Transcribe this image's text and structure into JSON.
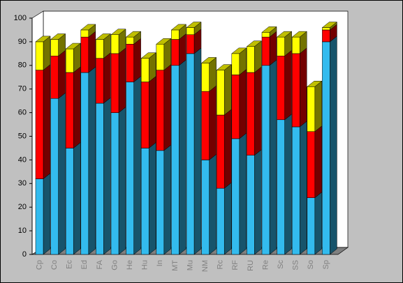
{
  "chart_data": {
    "type": "bar3d_stacked",
    "categories": [
      "Cp",
      "Co",
      "Ec",
      "Ed",
      "FA",
      "Go",
      "He",
      "Hu",
      "In",
      "MT",
      "Mu",
      "NM",
      "Rc",
      "RF",
      "RU",
      "Re",
      "Sc",
      "SS",
      "So",
      "Sp"
    ],
    "series": [
      {
        "color": "#33bbee",
        "values": [
          32,
          66,
          45,
          77,
          64,
          60,
          73,
          45,
          44,
          80,
          85,
          40,
          28,
          49,
          42,
          80,
          57,
          54,
          24,
          90
        ]
      },
      {
        "color": "#ff0000",
        "values": [
          46,
          18,
          32,
          15,
          19,
          25,
          16,
          28,
          34,
          11,
          8,
          29,
          31,
          27,
          35,
          12,
          27,
          31,
          28,
          5
        ]
      },
      {
        "color": "#ffff00",
        "values": [
          12,
          7,
          10,
          3,
          8,
          8,
          3,
          10,
          11,
          4,
          3,
          12,
          19,
          9,
          11,
          2,
          8,
          7,
          19,
          1
        ]
      }
    ],
    "ylim": [
      0,
      100
    ],
    "yticks": [
      0,
      10,
      20,
      30,
      40,
      50,
      60,
      70,
      80,
      90,
      100
    ]
  }
}
